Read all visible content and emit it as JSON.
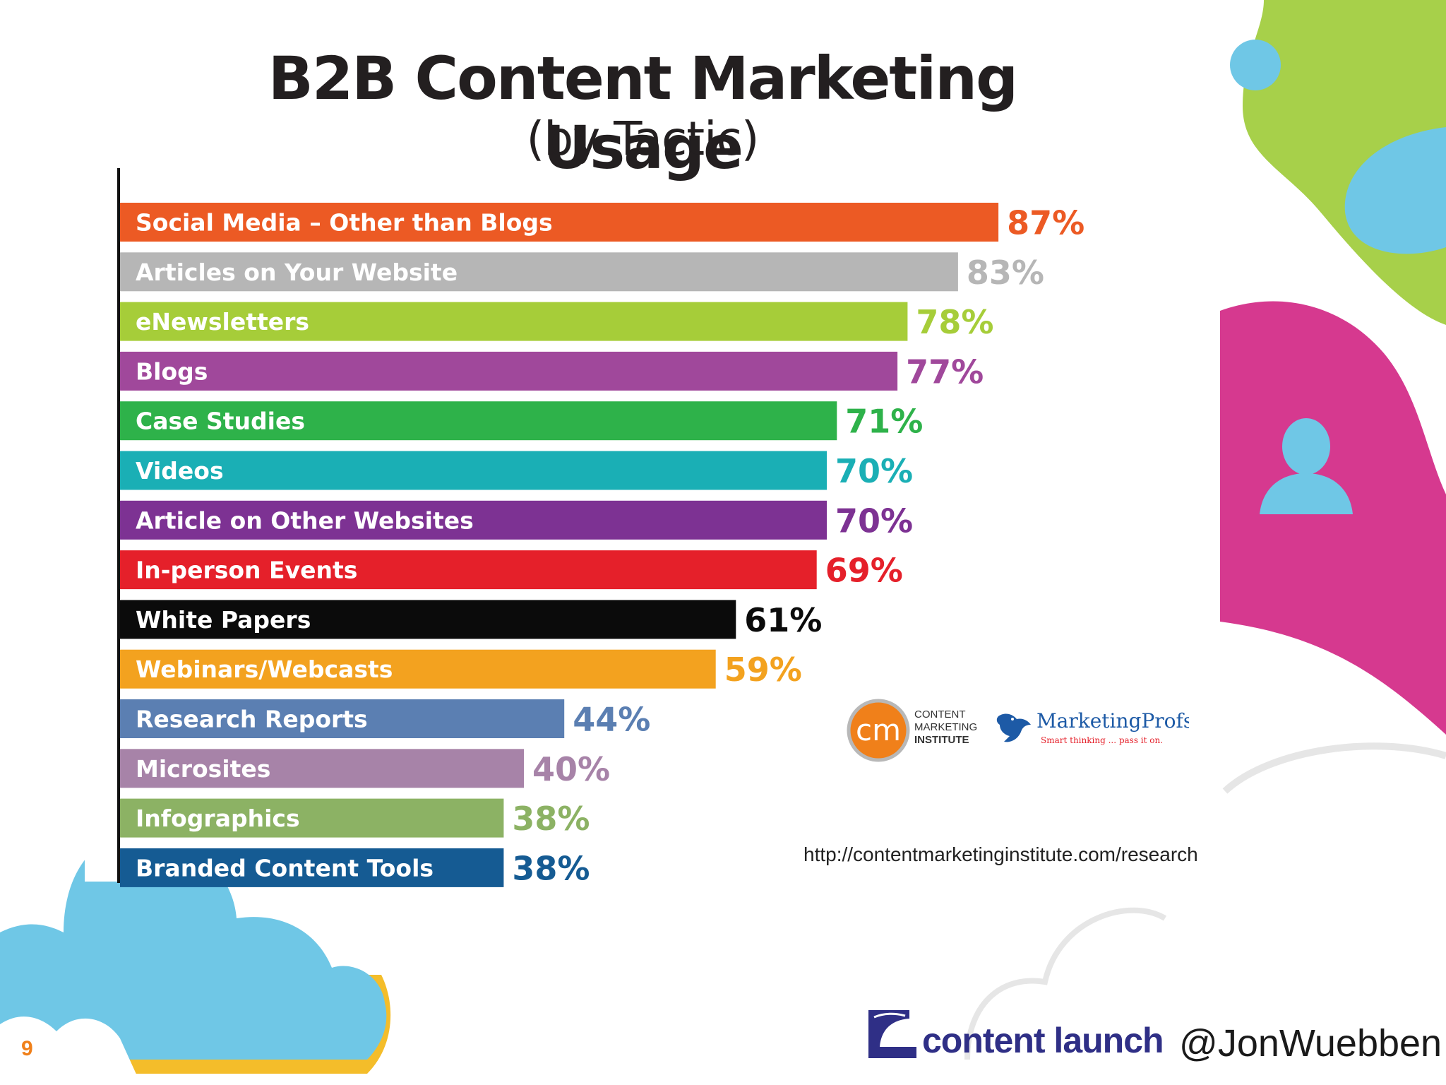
{
  "chart_data": {
    "type": "bar",
    "orientation": "horizontal",
    "title": "B2B Content Marketing Usage",
    "subtitle": "(by Tactic)",
    "xlim": [
      0,
      100
    ],
    "unit": "%",
    "grid": false,
    "legend": "none",
    "categories": [
      "Social Media – Other than Blogs",
      "Articles on Your Website",
      "eNewsletters",
      "Blogs",
      "Case Studies",
      "Videos",
      "Article on Other Websites",
      "In-person Events",
      "White Papers",
      "Webinars/Webcasts",
      "Research Reports",
      "Microsites",
      "Infographics",
      "Branded Content Tools"
    ],
    "values": [
      87,
      83,
      78,
      77,
      71,
      70,
      70,
      69,
      61,
      59,
      44,
      40,
      38,
      38
    ],
    "value_labels": [
      "87%",
      "83%",
      "78%",
      "77%",
      "71%",
      "70%",
      "70%",
      "69%",
      "61%",
      "59%",
      "44%",
      "40%",
      "38%",
      "38%"
    ],
    "bar_colors": [
      "#ec5a24",
      "#b6b6b6",
      "#a6cd39",
      "#a0489b",
      "#2eb24a",
      "#1aafb5",
      "#7d3293",
      "#e5202a",
      "#0b0b0b",
      "#f3a21f",
      "#5b7fb2",
      "#a783a8",
      "#8cb264",
      "#155b93"
    ],
    "label_colors": [
      "#ec5a24",
      "#b6b6b6",
      "#a6cd39",
      "#a0489b",
      "#2eb24a",
      "#1aafb5",
      "#7d3293",
      "#e5202a",
      "#0b0b0b",
      "#f3a21f",
      "#5b7fb2",
      "#a783a8",
      "#8cb264",
      "#155b93"
    ]
  },
  "logos": {
    "cmi_mark": "cm",
    "cmi_text": [
      "CONTENT",
      "MARKETING",
      "INSTITUTE"
    ],
    "marketingprofs_name": "MarketingProfs",
    "marketingprofs_tagline": "Smart thinking ... pass it on."
  },
  "source_url": "http://contentmarketinginstitute.com/research",
  "footer": {
    "page_number": "9",
    "brand_name": "content launch",
    "handle": "@JonWuebben"
  },
  "colors": {
    "cloud_blue": "#6fc7e6",
    "lime": "#a7d04a",
    "magenta": "#d6398f",
    "yellow": "#f4bd2a",
    "title": "#231f20"
  },
  "icons": [
    "user-avatar-icon",
    "bird-icon"
  ]
}
